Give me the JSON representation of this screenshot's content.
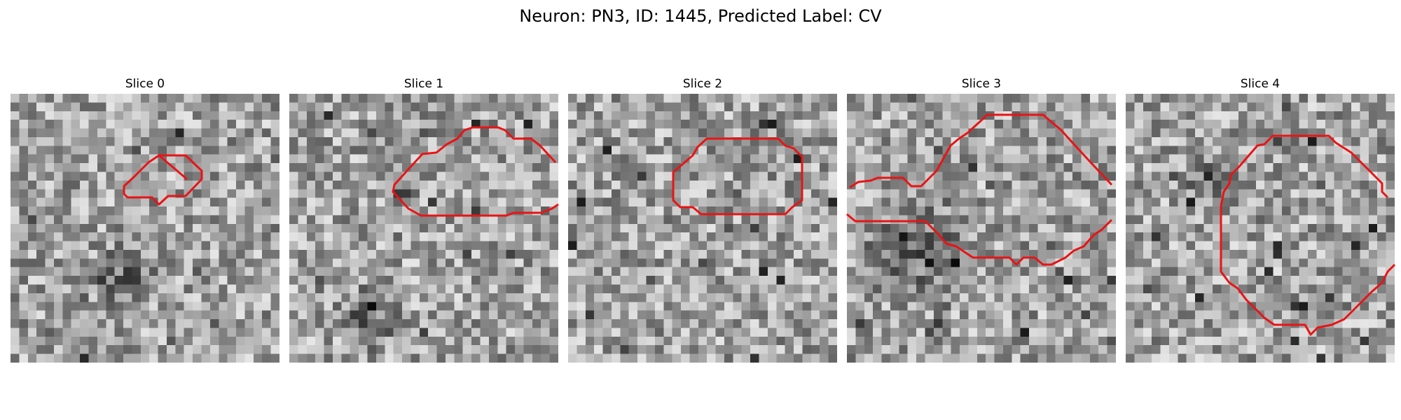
{
  "figure": {
    "title": "Neuron: PN3, ID: 1445, Predicted Label: CV"
  },
  "contour_color": "#e81416",
  "panels": [
    {
      "title": "Slice 0",
      "image": "grayscale-micrograph-patch",
      "seed": 11,
      "dark_blob": [
        0.42,
        0.66,
        0.16
      ]
    },
    {
      "title": "Slice 1",
      "image": "grayscale-micrograph-patch",
      "seed": 23,
      "dark_blob": [
        0.28,
        0.82,
        0.14
      ]
    },
    {
      "title": "Slice 2",
      "image": "grayscale-micrograph-patch",
      "seed": 37,
      "dark_blob": null
    },
    {
      "title": "Slice 3",
      "image": "grayscale-micrograph-patch",
      "seed": 53,
      "dark_blob": [
        0.25,
        0.55,
        0.25
      ]
    },
    {
      "title": "Slice 4",
      "image": "grayscale-micrograph-patch",
      "seed": 71,
      "dark_blob": [
        0.3,
        0.3,
        0.12
      ]
    }
  ]
}
